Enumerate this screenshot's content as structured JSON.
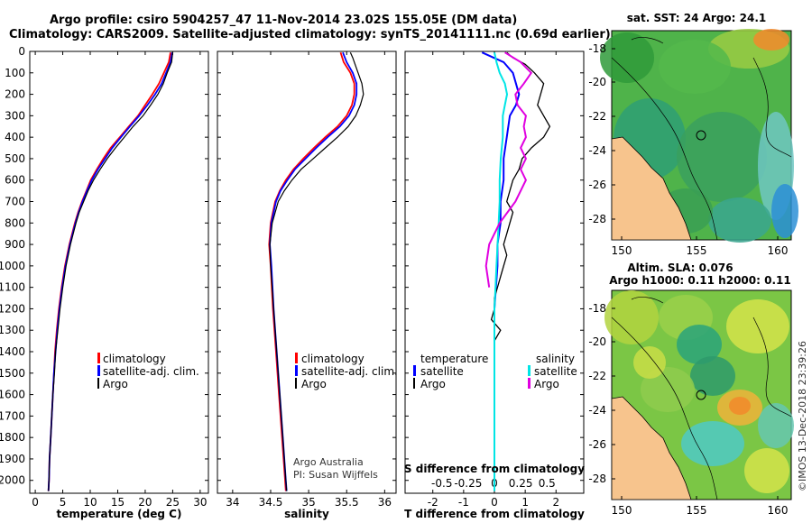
{
  "header": {
    "line1": "Argo profile: csiro 5904257_47 11-Nov-2014 23.02S 155.05E (DM data)",
    "line2": "Climatology: CARS2009. Satellite-adjusted climatology: synTS_20141111.nc (0.69d earlier)"
  },
  "colors": {
    "climatology": "#ff0000",
    "satellite": "#0000ff",
    "argo": "#000000",
    "sal_satellite": "#00e5e5",
    "sal_argo": "#e000e0",
    "land": "#f7c48d"
  },
  "depth_axis": {
    "ticks": [
      0,
      100,
      200,
      300,
      400,
      500,
      600,
      700,
      800,
      900,
      1000,
      1100,
      1200,
      1300,
      1400,
      1500,
      1600,
      1700,
      1800,
      1900,
      2000
    ],
    "range": [
      0,
      2060
    ]
  },
  "chart_data": [
    {
      "type": "line",
      "id": "temperature",
      "xlabel": "temperature (deg C)",
      "xlim": [
        -1,
        31.5
      ],
      "xticks": [
        0,
        5,
        10,
        15,
        20,
        25,
        30
      ],
      "legend": [
        "climatology",
        "satellite-adj. clim.",
        "Argo"
      ],
      "series": [
        {
          "name": "climatology",
          "depth": [
            5,
            50,
            100,
            150,
            200,
            250,
            300,
            350,
            400,
            450,
            500,
            550,
            600,
            650,
            700,
            750,
            800,
            900,
            1000,
            1100,
            1200,
            1300,
            1400,
            1500,
            1600,
            1700,
            1800,
            1900,
            2000,
            2050
          ],
          "values": [
            24.6,
            24.3,
            23.4,
            22.5,
            21.3,
            20.0,
            18.7,
            17.0,
            15.4,
            13.7,
            12.4,
            11.2,
            10.1,
            9.3,
            8.5,
            7.8,
            7.2,
            6.2,
            5.4,
            4.8,
            4.3,
            3.9,
            3.6,
            3.4,
            3.2,
            3.0,
            2.8,
            2.6,
            2.5,
            2.4
          ]
        },
        {
          "name": "satellite-adj. clim.",
          "depth": [
            5,
            50,
            100,
            150,
            200,
            250,
            300,
            350,
            400,
            450,
            500,
            550,
            600,
            650,
            700,
            750,
            800,
            900,
            1000,
            1100,
            1200,
            1300,
            1400,
            1500,
            1600,
            1700,
            1800,
            1900,
            2000,
            2050
          ],
          "values": [
            24.9,
            24.6,
            23.8,
            23.0,
            21.8,
            20.4,
            18.9,
            17.2,
            15.6,
            14.0,
            12.7,
            11.4,
            10.3,
            9.4,
            8.6,
            7.9,
            7.3,
            6.3,
            5.5,
            4.9,
            4.4,
            4.0,
            3.7,
            3.4,
            3.2,
            3.0,
            2.8,
            2.6,
            2.5,
            2.4
          ]
        },
        {
          "name": "Argo",
          "depth": [
            5,
            50,
            100,
            150,
            200,
            250,
            300,
            350,
            400,
            450,
            500,
            550,
            600,
            650,
            700,
            750,
            800,
            900,
            1000,
            1100,
            1200,
            1300,
            1400,
            1500,
            1600,
            1700,
            1800,
            1900,
            2000,
            2050
          ],
          "values": [
            25.0,
            24.8,
            24.0,
            23.3,
            22.3,
            21.0,
            19.6,
            17.8,
            16.2,
            14.6,
            13.1,
            11.8,
            10.6,
            9.6,
            8.8,
            8.0,
            7.4,
            6.4,
            5.6,
            5.0,
            4.5,
            4.1,
            3.7,
            3.5,
            3.2,
            3.0,
            2.8,
            2.6,
            2.5,
            2.4
          ]
        }
      ]
    },
    {
      "type": "line",
      "id": "salinity",
      "xlabel": "salinity",
      "xlim": [
        33.8,
        36.15
      ],
      "xticks": [
        34,
        34.5,
        35,
        35.5,
        36
      ],
      "legend": [
        "climatology",
        "satellite-adj. clim.",
        "Argo"
      ],
      "annotation": [
        "Argo Australia",
        "PI: Susan Wijffels"
      ],
      "series": [
        {
          "name": "climatology",
          "depth": [
            5,
            50,
            100,
            150,
            200,
            250,
            300,
            350,
            400,
            450,
            500,
            550,
            600,
            650,
            700,
            800,
            900,
            1000,
            1200,
            1400,
            1600,
            1800,
            2000,
            2050
          ],
          "values": [
            35.42,
            35.46,
            35.55,
            35.6,
            35.6,
            35.57,
            35.5,
            35.38,
            35.22,
            35.07,
            34.93,
            34.8,
            34.7,
            34.62,
            34.56,
            34.5,
            34.48,
            34.5,
            34.53,
            34.57,
            34.61,
            34.65,
            34.69,
            34.7
          ]
        },
        {
          "name": "satellite-adj. clim.",
          "depth": [
            5,
            50,
            100,
            150,
            200,
            250,
            300,
            350,
            400,
            450,
            500,
            550,
            600,
            650,
            700,
            800,
            900,
            1000,
            1200,
            1400,
            1600,
            1800,
            2000,
            2050
          ],
          "values": [
            35.45,
            35.5,
            35.58,
            35.63,
            35.63,
            35.6,
            35.53,
            35.41,
            35.25,
            35.1,
            34.96,
            34.82,
            34.72,
            34.63,
            34.57,
            34.51,
            34.49,
            34.51,
            34.54,
            34.58,
            34.62,
            34.66,
            34.7,
            34.71
          ]
        },
        {
          "name": "Argo",
          "depth": [
            5,
            30,
            50,
            100,
            150,
            200,
            250,
            300,
            350,
            400,
            450,
            500,
            550,
            600,
            650,
            700,
            800,
            900,
            1000,
            1200,
            1400,
            1600,
            1800,
            2000,
            2050
          ],
          "values": [
            35.55,
            35.58,
            35.6,
            35.65,
            35.7,
            35.72,
            35.68,
            35.62,
            35.52,
            35.38,
            35.22,
            35.06,
            34.9,
            34.78,
            34.68,
            34.6,
            34.52,
            34.49,
            34.5,
            34.54,
            34.58,
            34.62,
            34.66,
            34.7,
            34.71
          ]
        }
      ]
    },
    {
      "type": "line",
      "id": "difference",
      "xlabel": "T difference from climatology",
      "xlabel2": "S difference from climatology",
      "xlim": [
        -2.9,
        2.9
      ],
      "xticks": [
        -2,
        -1,
        0,
        1,
        2
      ],
      "sticks": [
        -0.5,
        -0.25,
        0,
        0.25,
        0.5
      ],
      "stick_labels": [
        "-0.5",
        "-0.25",
        "0",
        "0.25",
        "0.5"
      ],
      "legend_t": {
        "title": "temperature",
        "items": [
          "satellite",
          "Argo"
        ]
      },
      "legend_s": {
        "title": "salinity",
        "items": [
          "satellite",
          "Argo"
        ]
      },
      "series": [
        {
          "name": "T satellite",
          "depth": [
            5,
            50,
            100,
            150,
            200,
            250,
            300,
            400,
            500,
            600,
            700,
            800,
            900,
            1000,
            1100,
            1200
          ],
          "values": [
            -0.4,
            0.3,
            0.6,
            0.7,
            0.8,
            0.7,
            0.5,
            0.4,
            0.3,
            0.3,
            0.2,
            0.2,
            0.1,
            0.1,
            0.05,
            0.0
          ]
        },
        {
          "name": "T Argo",
          "depth": [
            5,
            30,
            60,
            100,
            150,
            200,
            250,
            300,
            350,
            400,
            450,
            500,
            550,
            600,
            650,
            700,
            750,
            800,
            850,
            900,
            950,
            1000,
            1050,
            1100,
            1150,
            1200,
            1250,
            1300,
            1350,
            1400,
            1500,
            1600,
            1700,
            1800,
            1900,
            2000
          ],
          "values": [
            0.4,
            0.6,
            1.0,
            1.3,
            1.6,
            1.5,
            1.4,
            1.6,
            1.8,
            1.6,
            1.2,
            0.9,
            0.8,
            0.6,
            0.5,
            0.4,
            0.6,
            0.5,
            0.4,
            0.3,
            0.4,
            0.3,
            0.2,
            0.1,
            0.0,
            0.0,
            -0.1,
            0.2,
            0.0,
            0.0,
            0.0,
            0.0,
            0.0,
            0.0,
            0.0,
            0.0
          ]
        },
        {
          "name": "S satellite",
          "depth": [
            5,
            50,
            100,
            150,
            200,
            250,
            300,
            400,
            500,
            600,
            700,
            800,
            900,
            1000,
            1100,
            1200,
            1400,
            1600,
            1800,
            2000,
            2050
          ],
          "values": [
            0.0,
            0.02,
            0.05,
            0.1,
            0.12,
            0.1,
            0.08,
            0.08,
            0.06,
            0.05,
            0.05,
            0.04,
            0.03,
            0.02,
            0.01,
            0.0,
            0.0,
            0.0,
            0.0,
            0.0,
            0.0
          ]
        },
        {
          "name": "S Argo",
          "depth": [
            5,
            50,
            100,
            150,
            200,
            250,
            300,
            350,
            400,
            450,
            500,
            550,
            600,
            700,
            800,
            900,
            1000,
            1100
          ],
          "values": [
            0.1,
            0.25,
            0.35,
            0.28,
            0.2,
            0.22,
            0.3,
            0.28,
            0.3,
            0.25,
            0.3,
            0.25,
            0.3,
            0.2,
            0.05,
            -0.05,
            -0.08,
            -0.05
          ]
        }
      ]
    }
  ],
  "maps": {
    "sst": {
      "title": "sat. SST: 24 Argo: 24.1",
      "xticks": [
        "150",
        "155",
        "160"
      ],
      "yticks": [
        "-18",
        "-20",
        "-22",
        "-24",
        "-26",
        "-28"
      ]
    },
    "sla": {
      "title1": "Altim. SLA: 0.076",
      "title2": "Argo h1000: 0.11 h2000: 0.11",
      "xticks": [
        "150",
        "155",
        "160"
      ],
      "yticks": [
        "-18",
        "-20",
        "-22",
        "-24",
        "-26",
        "-28"
      ]
    }
  },
  "credit": "©IMOS 13-Dec-2018 23:39:26"
}
